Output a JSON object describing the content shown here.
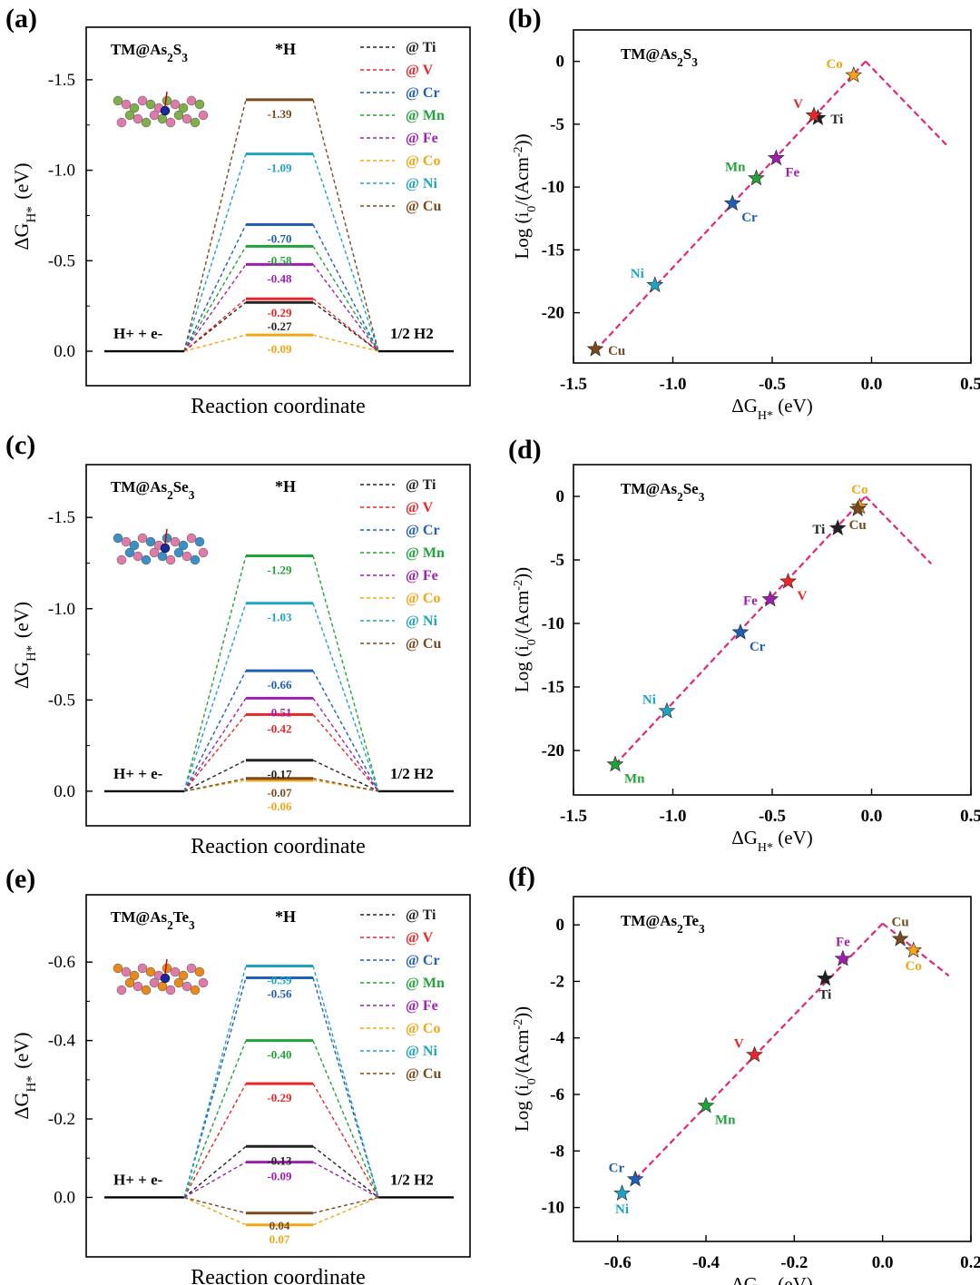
{
  "colors": {
    "Ti": "#222222",
    "V": "#e8262a",
    "Cr": "#1f5fb5",
    "Mn": "#21a33a",
    "Fe": "#9c1fb0",
    "Co": "#f2a516",
    "Ni": "#1fa3c2",
    "Cu": "#7a4a1e",
    "volcano": "#e5257a"
  },
  "metals": [
    "Ti",
    "V",
    "Cr",
    "Mn",
    "Fe",
    "Co",
    "Ni",
    "Cu"
  ],
  "chart_data": [
    {
      "type": "energy-diagram",
      "panel": "(a)",
      "system": "TM@As2S3",
      "species_label": "*H",
      "ylabel": "ΔGH* (eV)",
      "xlabel": "Reaction coordinate",
      "left_state": "H+ + e-",
      "right_state": "1/2 H2",
      "ylim": [
        0.1,
        -1.7
      ],
      "yticks": [
        0.0,
        -0.5,
        -1.0,
        -1.5
      ],
      "ytick_labels": [
        "0.0",
        "-0.5",
        "-1.0",
        "-1.5"
      ],
      "legend": [
        "@ Ti",
        "@ V",
        "@ Cr",
        "@ Mn",
        "@ Fe",
        "@ Co",
        "@ Ni",
        "@ Cu"
      ],
      "series": [
        {
          "metal": "Ti",
          "value": -0.27,
          "label": "-0.27"
        },
        {
          "metal": "V",
          "value": -0.29,
          "label": "-0.29"
        },
        {
          "metal": "Cr",
          "value": -0.7,
          "label": "-0.70"
        },
        {
          "metal": "Mn",
          "value": -0.58,
          "label": "-0.58"
        },
        {
          "metal": "Fe",
          "value": -0.48,
          "label": "-0.48"
        },
        {
          "metal": "Co",
          "value": -0.09,
          "label": "-0.09"
        },
        {
          "metal": "Ni",
          "value": -1.09,
          "label": "-1.09"
        },
        {
          "metal": "Cu",
          "value": -1.39,
          "label": "-1.39"
        }
      ],
      "inset_colors": [
        "#7fae4a",
        "#e07aa8"
      ]
    },
    {
      "type": "volcano-scatter",
      "panel": "(b)",
      "system": "TM@As2S3",
      "xlabel": "ΔGH* (eV)",
      "ylabel": "Log (i0/(Acm-2))",
      "xlim": [
        -1.5,
        0.5
      ],
      "ylim": [
        -24,
        2.5
      ],
      "xticks": [
        -1.5,
        -1.0,
        -0.5,
        0.0,
        0.5
      ],
      "xtick_labels": [
        "-1.5",
        "-1.0",
        "-0.5",
        "0.0",
        "0.5"
      ],
      "yticks": [
        0,
        -5,
        -10,
        -15,
        -20
      ],
      "ytick_labels": [
        "0",
        "-5",
        "-10",
        "-15",
        "-20"
      ],
      "volcano_line": {
        "left": [
          [
            -1.39,
            -23.0
          ],
          [
            -0.03,
            0.0
          ]
        ],
        "right": [
          [
            -0.03,
            0.0
          ],
          [
            0.38,
            -6.7
          ]
        ]
      },
      "points": [
        {
          "metal": "Ti",
          "x": -0.27,
          "y": -4.5,
          "label": "Ti",
          "pos": "right"
        },
        {
          "metal": "V",
          "x": -0.29,
          "y": -4.3,
          "label": "V",
          "pos": "upleft"
        },
        {
          "metal": "Cr",
          "x": -0.7,
          "y": -11.3,
          "label": "Cr",
          "pos": "downright"
        },
        {
          "metal": "Mn",
          "x": -0.58,
          "y": -9.3,
          "label": "Mn",
          "pos": "upleft"
        },
        {
          "metal": "Fe",
          "x": -0.48,
          "y": -7.7,
          "label": "Fe",
          "pos": "downright"
        },
        {
          "metal": "Co",
          "x": -0.09,
          "y": -1.1,
          "label": "Co",
          "pos": "upleft"
        },
        {
          "metal": "Ni",
          "x": -1.09,
          "y": -17.8,
          "label": "Ni",
          "pos": "upleft"
        },
        {
          "metal": "Cu",
          "x": -1.39,
          "y": -22.9,
          "label": "Cu",
          "pos": "right"
        }
      ]
    },
    {
      "type": "energy-diagram",
      "panel": "(c)",
      "system": "TM@As2Se3",
      "species_label": "*H",
      "ylabel": "ΔGH* (eV)",
      "xlabel": "Reaction coordinate",
      "left_state": "H+ + e-",
      "right_state": "1/2 H2",
      "ylim": [
        0.1,
        -1.7
      ],
      "yticks": [
        0.0,
        -0.5,
        -1.0,
        -1.5
      ],
      "ytick_labels": [
        "0.0",
        "-0.5",
        "-1.0",
        "-1.5"
      ],
      "legend": [
        "@ Ti",
        "@ V",
        "@ Cr",
        "@ Mn",
        "@ Fe",
        "@ Co",
        "@ Ni",
        "@ Cu"
      ],
      "series": [
        {
          "metal": "Ti",
          "value": -0.17,
          "label": "-0.17"
        },
        {
          "metal": "V",
          "value": -0.42,
          "label": "-0.42"
        },
        {
          "metal": "Cr",
          "value": -0.66,
          "label": "-0.66"
        },
        {
          "metal": "Mn",
          "value": -1.29,
          "label": "-1.29"
        },
        {
          "metal": "Fe",
          "value": -0.51,
          "label": "-0.51"
        },
        {
          "metal": "Co",
          "value": -0.06,
          "label": "-0.06"
        },
        {
          "metal": "Ni",
          "value": -1.03,
          "label": "-1.03"
        },
        {
          "metal": "Cu",
          "value": -0.07,
          "label": "-0.07"
        }
      ],
      "inset_colors": [
        "#3a8fc4",
        "#e07aa8"
      ]
    },
    {
      "type": "volcano-scatter",
      "panel": "(d)",
      "system": "TM@As2Se3",
      "xlabel": "ΔGH* (eV)",
      "ylabel": "Log (i0/(Acm-2))",
      "xlim": [
        -1.5,
        0.5
      ],
      "ylim": [
        -23.5,
        2.5
      ],
      "xticks": [
        -1.5,
        -1.0,
        -0.5,
        0.0,
        0.5
      ],
      "xtick_labels": [
        "-1.5",
        "-1.0",
        "-0.5",
        "0.0",
        "0.5"
      ],
      "yticks": [
        0,
        -5,
        -10,
        -15,
        -20
      ],
      "ytick_labels": [
        "0",
        "-5",
        "-10",
        "-15",
        "-20"
      ],
      "volcano_line": {
        "left": [
          [
            -1.29,
            -21.1
          ],
          [
            -0.03,
            0.0
          ]
        ],
        "right": [
          [
            -0.03,
            0.0
          ],
          [
            0.3,
            -5.3
          ]
        ]
      },
      "points": [
        {
          "metal": "Ti",
          "x": -0.17,
          "y": -2.5,
          "label": "Ti",
          "pos": "left"
        },
        {
          "metal": "V",
          "x": -0.42,
          "y": -6.7,
          "label": "V",
          "pos": "downright"
        },
        {
          "metal": "Cr",
          "x": -0.66,
          "y": -10.7,
          "label": "Cr",
          "pos": "downright"
        },
        {
          "metal": "Mn",
          "x": -1.29,
          "y": -21.1,
          "label": "Mn",
          "pos": "downright"
        },
        {
          "metal": "Fe",
          "x": -0.51,
          "y": -8.1,
          "label": "Fe",
          "pos": "left"
        },
        {
          "metal": "Co",
          "x": -0.06,
          "y": -0.8,
          "label": "Co",
          "pos": "up"
        },
        {
          "metal": "Ni",
          "x": -1.03,
          "y": -16.9,
          "label": "Ni",
          "pos": "upleft"
        },
        {
          "metal": "Cu",
          "x": -0.07,
          "y": -1.0,
          "label": "Cu",
          "pos": "down"
        }
      ]
    },
    {
      "type": "energy-diagram",
      "panel": "(e)",
      "system": "TM@As2Te3",
      "species_label": "*H",
      "ylabel": "ΔGH* (eV)",
      "xlabel": "Reaction coordinate",
      "left_state": "H+ + e-",
      "right_state": "1/2 H2",
      "ylim": [
        0.11,
        -0.73
      ],
      "yticks": [
        0.0,
        -0.2,
        -0.4,
        -0.6
      ],
      "ytick_labels": [
        "0.0",
        "-0.2",
        "-0.4",
        "-0.6"
      ],
      "legend": [
        "@ Ti",
        "@ V",
        "@ Cr",
        "@ Mn",
        "@ Fe",
        "@ Co",
        "@ Ni",
        "@ Cu"
      ],
      "series": [
        {
          "metal": "Ti",
          "value": -0.13,
          "label": "-0.13"
        },
        {
          "metal": "V",
          "value": -0.29,
          "label": "-0.29"
        },
        {
          "metal": "Cr",
          "value": -0.56,
          "label": "-0.56"
        },
        {
          "metal": "Mn",
          "value": -0.4,
          "label": "-0.40"
        },
        {
          "metal": "Fe",
          "value": -0.09,
          "label": "-0.09"
        },
        {
          "metal": "Co",
          "value": 0.07,
          "label": "0.07"
        },
        {
          "metal": "Ni",
          "value": -0.59,
          "label": "-0.59"
        },
        {
          "metal": "Cu",
          "value": 0.04,
          "label": "0.04"
        }
      ],
      "inset_colors": [
        "#e8891a",
        "#e07aa8"
      ]
    },
    {
      "type": "volcano-scatter",
      "panel": "(f)",
      "system": "TM@As2Te3",
      "xlabel": "ΔGH* (eV)",
      "ylabel": "Log (i0/(Acm-2))",
      "xlim": [
        -0.7,
        0.2
      ],
      "ylim": [
        -11.2,
        1.0
      ],
      "xticks": [
        -0.6,
        -0.4,
        -0.2,
        0.0,
        0.2
      ],
      "xtick_labels": [
        "-0.6",
        "-0.4",
        "-0.2",
        "0.0",
        "0.2"
      ],
      "yticks": [
        0,
        -2,
        -4,
        -6,
        -8,
        -10
      ],
      "ytick_labels": [
        "0",
        "-2",
        "-4",
        "-6",
        "-8",
        "-10"
      ],
      "volcano_line": {
        "left": [
          [
            -0.56,
            -9.0
          ],
          [
            0.0,
            0.05
          ]
        ],
        "right": [
          [
            0.0,
            0.05
          ],
          [
            0.15,
            -1.8
          ]
        ]
      },
      "points": [
        {
          "metal": "Ti",
          "x": -0.13,
          "y": -1.9,
          "label": "Ti",
          "pos": "down"
        },
        {
          "metal": "V",
          "x": -0.29,
          "y": -4.6,
          "label": "V",
          "pos": "upleft"
        },
        {
          "metal": "Cr",
          "x": -0.56,
          "y": -9.0,
          "label": "Cr",
          "pos": "upleft"
        },
        {
          "metal": "Mn",
          "x": -0.4,
          "y": -6.4,
          "label": "Mn",
          "pos": "downright"
        },
        {
          "metal": "Fe",
          "x": -0.09,
          "y": -1.2,
          "label": "Fe",
          "pos": "up"
        },
        {
          "metal": "Co",
          "x": 0.07,
          "y": -0.9,
          "label": "Co",
          "pos": "down"
        },
        {
          "metal": "Ni",
          "x": -0.59,
          "y": -9.5,
          "label": "Ni",
          "pos": "down"
        },
        {
          "metal": "Cu",
          "x": 0.04,
          "y": -0.5,
          "label": "Cu",
          "pos": "up"
        }
      ]
    }
  ]
}
